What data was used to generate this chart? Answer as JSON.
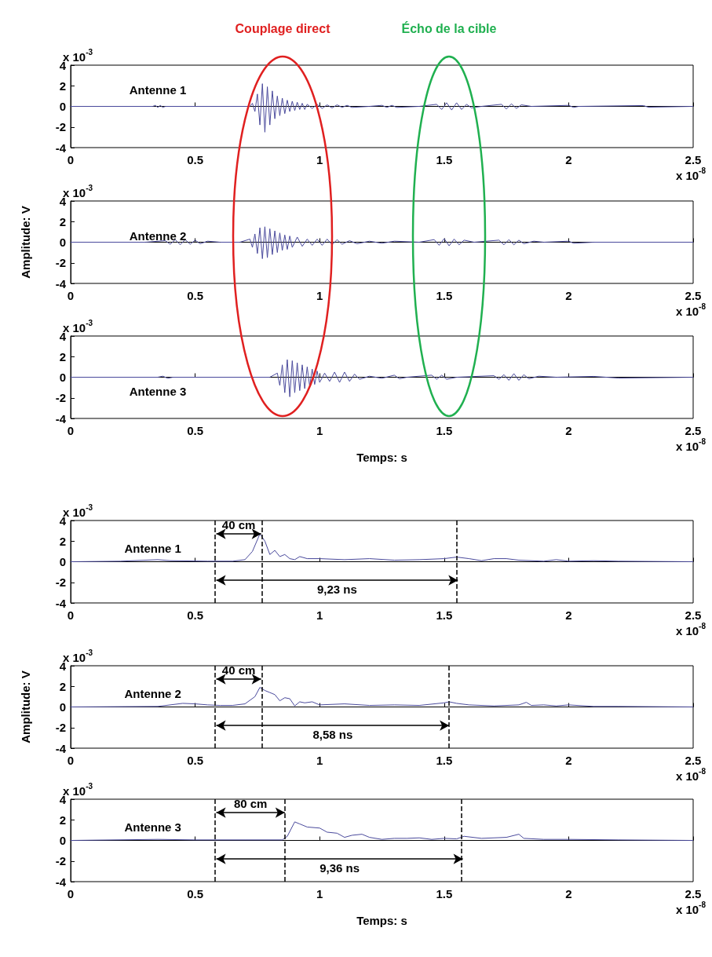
{
  "chart_data": [
    {
      "type": "line",
      "marker": "none",
      "xlim": [
        0,
        2.5
      ],
      "xticks": [
        0,
        0.5,
        1,
        1.5,
        2,
        2.5
      ],
      "ylim": [
        -4,
        4
      ],
      "yticks": [
        -4,
        -2,
        0,
        2,
        4
      ],
      "annotations": [
        "x 10$^{-3}$",
        "x 10$^{-8}$",
        "Couplage direct",
        "Écho de la cible"
      ],
      "series": [
        {
          "name": "Antenne 1",
          "color": "#4a4a9c",
          "x": [
            0,
            0.33,
            0.34,
            0.35,
            0.36,
            0.37,
            0.38,
            0.72,
            0.73,
            0.74,
            0.75,
            0.76,
            0.77,
            0.78,
            0.79,
            0.8,
            0.81,
            0.82,
            0.83,
            0.84,
            0.85,
            0.86,
            0.87,
            0.88,
            0.89,
            0.9,
            0.91,
            0.92,
            0.93,
            0.94,
            0.95,
            0.97,
            0.99,
            1.01,
            1.03,
            1.05,
            1.07,
            1.09,
            1.11,
            1.13,
            1.2,
            1.25,
            1.27,
            1.29,
            1.31,
            1.4,
            1.47,
            1.49,
            1.51,
            1.53,
            1.55,
            1.57,
            1.59,
            1.61,
            1.65,
            1.73,
            1.75,
            1.77,
            1.79,
            1.81,
            1.85,
            2.0,
            2.02,
            2.04,
            2.3,
            2.32,
            2.5
          ],
          "values": [
            0,
            0,
            0.1,
            -0.1,
            0.1,
            -0.1,
            0,
            0,
            0.3,
            -0.5,
            1.2,
            -1.8,
            2.2,
            -2.5,
            1.9,
            -1.8,
            1.5,
            -1.2,
            1.0,
            -0.9,
            0.8,
            -0.7,
            0.6,
            -0.5,
            0.5,
            -0.4,
            0.4,
            -0.3,
            0.3,
            -0.3,
            0.2,
            -0.2,
            0.2,
            -0.2,
            0.15,
            -0.15,
            0.15,
            -0.1,
            0.1,
            -0.1,
            0,
            0.1,
            -0.1,
            0.1,
            -0.1,
            0,
            0.2,
            -0.3,
            0.35,
            -0.35,
            0.35,
            -0.3,
            0.2,
            -0.15,
            0,
            0.2,
            -0.25,
            0.25,
            -0.2,
            0.15,
            0,
            0.1,
            -0.1,
            0,
            0.08,
            -0.08,
            0
          ]
        }
      ]
    },
    {
      "type": "line",
      "marker": "none",
      "xlim": [
        0,
        2.5
      ],
      "xticks": [
        0,
        0.5,
        1,
        1.5,
        2,
        2.5
      ],
      "ylim": [
        -4,
        4
      ],
      "yticks": [
        -4,
        -2,
        0,
        2,
        4
      ],
      "ylabel": "Amplitude: V",
      "annotations": [
        "x 10$^{-3}$",
        "x 10$^{-8}$"
      ],
      "series": [
        {
          "name": "Antenne 2",
          "color": "#4a4a9c",
          "x": [
            0,
            0.3,
            0.38,
            0.4,
            0.42,
            0.44,
            0.46,
            0.48,
            0.5,
            0.52,
            0.55,
            0.6,
            0.68,
            0.72,
            0.73,
            0.74,
            0.75,
            0.76,
            0.77,
            0.78,
            0.79,
            0.8,
            0.81,
            0.82,
            0.83,
            0.84,
            0.85,
            0.86,
            0.87,
            0.88,
            0.89,
            0.91,
            0.93,
            0.95,
            0.97,
            0.99,
            1.01,
            1.03,
            1.05,
            1.07,
            1.09,
            1.12,
            1.15,
            1.2,
            1.25,
            1.3,
            1.4,
            1.46,
            1.48,
            1.5,
            1.52,
            1.54,
            1.56,
            1.58,
            1.62,
            1.72,
            1.74,
            1.76,
            1.78,
            1.8,
            1.82,
            1.86,
            1.9,
            2.0,
            2.02,
            2.1,
            2.5
          ],
          "values": [
            0,
            0,
            0.15,
            -0.2,
            0.25,
            -0.25,
            0.25,
            -0.2,
            0.2,
            -0.15,
            0.1,
            0,
            0,
            0.3,
            -0.5,
            0.8,
            -1.1,
            1.4,
            -1.6,
            1.5,
            -1.5,
            1.3,
            -1.2,
            1.1,
            -1.0,
            0.9,
            -0.8,
            0.7,
            -0.7,
            0.6,
            -0.5,
            0.5,
            -0.4,
            0.3,
            -0.3,
            0.3,
            -0.3,
            0.3,
            -0.25,
            0.25,
            -0.2,
            0.15,
            -0.15,
            0.1,
            -0.1,
            0.1,
            0,
            0.25,
            -0.3,
            0.35,
            -0.35,
            0.3,
            -0.25,
            0.2,
            0,
            0.2,
            -0.25,
            0.25,
            -0.25,
            0.2,
            -0.15,
            0.1,
            0,
            0.1,
            -0.1,
            0,
            0
          ]
        }
      ]
    },
    {
      "type": "line",
      "marker": "none",
      "xlim": [
        0,
        2.5
      ],
      "xticks": [
        0,
        0.5,
        1,
        1.5,
        2,
        2.5
      ],
      "ylim": [
        -4,
        4
      ],
      "yticks": [
        -4,
        -2,
        0,
        2,
        4
      ],
      "xlabel": "Temps: s",
      "annotations": [
        "x 10$^{-3}$",
        "x 10$^{-8}$"
      ],
      "series": [
        {
          "name": "Antenne 3",
          "color": "#4a4a9c",
          "x": [
            0,
            0.35,
            0.37,
            0.39,
            0.41,
            0.8,
            0.83,
            0.84,
            0.85,
            0.86,
            0.87,
            0.88,
            0.89,
            0.9,
            0.91,
            0.92,
            0.93,
            0.94,
            0.95,
            0.96,
            0.97,
            0.98,
            0.99,
            1.0,
            1.02,
            1.04,
            1.06,
            1.08,
            1.1,
            1.12,
            1.14,
            1.16,
            1.2,
            1.25,
            1.3,
            1.32,
            1.35,
            1.45,
            1.47,
            1.49,
            1.51,
            1.55,
            1.7,
            1.72,
            1.74,
            1.76,
            1.78,
            1.8,
            1.82,
            1.84,
            1.88,
            1.95,
            2.1,
            2.2,
            2.5
          ],
          "values": [
            0,
            0,
            0.1,
            -0.1,
            0,
            0,
            0.4,
            -0.8,
            1.2,
            -1.5,
            1.7,
            -1.9,
            1.6,
            -1.5,
            1.4,
            -1.3,
            1.2,
            -1.1,
            1.0,
            -0.9,
            0.8,
            -0.7,
            0.6,
            -0.5,
            0.4,
            -0.4,
            0.5,
            -0.5,
            0.5,
            -0.4,
            0.3,
            -0.2,
            0.1,
            -0.1,
            0.2,
            -0.15,
            0,
            0.2,
            -0.2,
            0.2,
            -0.2,
            0,
            0.15,
            -0.2,
            0.25,
            -0.3,
            0.35,
            -0.3,
            0.25,
            -0.15,
            0.1,
            0,
            0.08,
            -0.08,
            0
          ]
        }
      ]
    },
    {
      "type": "line",
      "marker": "none",
      "xlim": [
        0,
        2.5
      ],
      "xticks": [
        0,
        0.5,
        1,
        1.5,
        2,
        2.5
      ],
      "ylim": [
        -4,
        4
      ],
      "yticks": [
        -4,
        -2,
        0,
        2,
        4
      ],
      "annotations": [
        "x 10$^{-3}$",
        "x 10$^{-8}$",
        "40 cm",
        "9,23 ns"
      ],
      "ref_lines": [
        {
          "axis": "x",
          "value": 0.585,
          "line_style": "dashed",
          "color": "#000000"
        },
        {
          "axis": "x",
          "value": 0.765,
          "line_style": "dashed",
          "color": "#000000"
        },
        {
          "axis": "x",
          "value": 1.555,
          "line_style": "dashed",
          "color": "#000000"
        }
      ],
      "series": [
        {
          "name": "Antenne 1",
          "color": "#4a4a9c",
          "x": [
            0,
            0.2,
            0.35,
            0.4,
            0.55,
            0.65,
            0.7,
            0.73,
            0.76,
            0.78,
            0.8,
            0.82,
            0.84,
            0.86,
            0.88,
            0.9,
            0.92,
            0.95,
            1.0,
            1.1,
            1.2,
            1.3,
            1.4,
            1.5,
            1.55,
            1.6,
            1.65,
            1.7,
            1.75,
            1.8,
            1.9,
            1.95,
            2.0,
            2.1,
            2.2,
            2.5
          ],
          "values": [
            0,
            0.05,
            0.2,
            0.1,
            0.05,
            0.05,
            0.2,
            1.0,
            2.7,
            2.0,
            0.7,
            1.1,
            0.5,
            0.7,
            0.3,
            0.2,
            0.5,
            0.3,
            0.3,
            0.2,
            0.3,
            0.15,
            0.2,
            0.3,
            0.45,
            0.3,
            0.1,
            0.3,
            0.3,
            0.15,
            0.05,
            0.2,
            0.05,
            0.1,
            0.05,
            0
          ]
        }
      ]
    },
    {
      "type": "line",
      "marker": "none",
      "xlim": [
        0,
        2.5
      ],
      "xticks": [
        0,
        0.5,
        1,
        1.5,
        2,
        2.5
      ],
      "ylim": [
        -4,
        4
      ],
      "yticks": [
        -4,
        -2,
        0,
        2,
        4
      ],
      "ylabel": "Amplitude: V",
      "annotations": [
        "x 10$^{-3}$",
        "x 10$^{-8}$",
        "40 cm",
        "8,58 ns"
      ],
      "ref_lines": [
        {
          "axis": "x",
          "value": 0.585,
          "line_style": "dashed",
          "color": "#000000"
        },
        {
          "axis": "x",
          "value": 0.765,
          "line_style": "dashed",
          "color": "#000000"
        },
        {
          "axis": "x",
          "value": 1.52,
          "line_style": "dashed",
          "color": "#000000"
        }
      ],
      "series": [
        {
          "name": "Antenne 2",
          "color": "#4a4a9c",
          "x": [
            0,
            0.35,
            0.45,
            0.5,
            0.55,
            0.6,
            0.65,
            0.7,
            0.74,
            0.76,
            0.78,
            0.8,
            0.82,
            0.84,
            0.86,
            0.88,
            0.9,
            0.92,
            0.94,
            0.97,
            1.0,
            1.1,
            1.2,
            1.3,
            1.4,
            1.5,
            1.52,
            1.55,
            1.6,
            1.7,
            1.8,
            1.83,
            1.85,
            1.9,
            1.95,
            2.0,
            2.1,
            2.2,
            2.5
          ],
          "values": [
            0,
            0.05,
            0.35,
            0.3,
            0.2,
            0.15,
            0.15,
            0.3,
            1.0,
            1.9,
            1.6,
            1.4,
            1.2,
            0.6,
            0.9,
            0.8,
            0.1,
            0.5,
            0.4,
            0.5,
            0.2,
            0.3,
            0.15,
            0.2,
            0.15,
            0.4,
            0.5,
            0.35,
            0.2,
            0.1,
            0.2,
            0.45,
            0.15,
            0.2,
            0.1,
            0.2,
            0.05,
            0.05,
            0
          ]
        }
      ]
    },
    {
      "type": "line",
      "marker": "none",
      "xlim": [
        0,
        2.5
      ],
      "xticks": [
        0,
        0.5,
        1,
        1.5,
        2,
        2.5
      ],
      "ylim": [
        -4,
        4
      ],
      "yticks": [
        -4,
        -2,
        0,
        2,
        4
      ],
      "xlabel": "Temps: s",
      "annotations": [
        "x 10$^{-3}$",
        "x 10$^{-8}$",
        "80 cm",
        "9,36 ns"
      ],
      "ref_lines": [
        {
          "axis": "x",
          "value": 0.585,
          "line_style": "dashed",
          "color": "#000000"
        },
        {
          "axis": "x",
          "value": 0.86,
          "line_style": "dashed",
          "color": "#000000"
        },
        {
          "axis": "x",
          "value": 1.575,
          "line_style": "dashed",
          "color": "#000000"
        }
      ],
      "series": [
        {
          "name": "Antenne 3",
          "color": "#4a4a9c",
          "x": [
            0,
            0.35,
            0.5,
            0.7,
            0.85,
            0.87,
            0.9,
            0.92,
            0.95,
            1.0,
            1.03,
            1.07,
            1.1,
            1.13,
            1.17,
            1.2,
            1.25,
            1.3,
            1.35,
            1.4,
            1.45,
            1.5,
            1.55,
            1.58,
            1.65,
            1.75,
            1.8,
            1.82,
            1.9,
            2.0,
            2.2,
            2.5
          ],
          "values": [
            0,
            0.1,
            0.05,
            0.05,
            0.05,
            0.4,
            1.8,
            1.6,
            1.3,
            1.2,
            0.8,
            0.7,
            0.3,
            0.5,
            0.6,
            0.3,
            0.1,
            0.2,
            0.2,
            0.25,
            0.1,
            0.2,
            0.15,
            0.4,
            0.2,
            0.3,
            0.6,
            0.2,
            0.1,
            0.1,
            0.05,
            0
          ]
        }
      ]
    }
  ]
}
